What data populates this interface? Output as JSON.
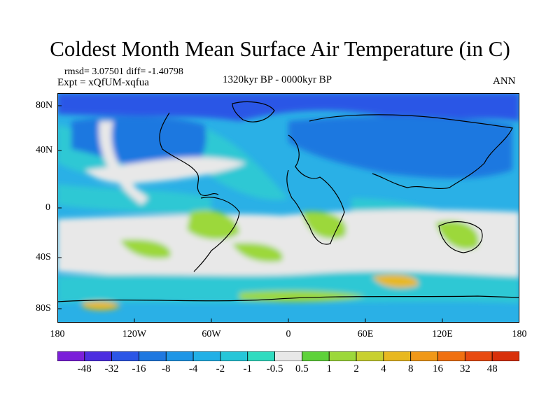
{
  "title": "Coldest Month Mean Surface Air Temperature (in C)",
  "stats": "rmsd= 3.07501  diff= -1.40798",
  "expt": "Expt = xQfUM-xqfua",
  "period": "1320kyr BP - 0000kyr BP",
  "season": "ANN",
  "lat_ticks": [
    "80N",
    "40N",
    "0",
    "40S",
    "80S"
  ],
  "lon_ticks": [
    "180",
    "120W",
    "60W",
    "0",
    "60E",
    "120E",
    "180"
  ],
  "colorbar": {
    "labels": [
      "-48",
      "-32",
      "-16",
      "-8",
      "-4",
      "-2",
      "-1",
      "-0.5",
      "0.5",
      "1",
      "2",
      "4",
      "8",
      "16",
      "32",
      "48"
    ],
    "colors": [
      "#7b1fd9",
      "#4d2ee0",
      "#2c56e6",
      "#1f78e0",
      "#1f96e6",
      "#22b0e6",
      "#26c6d8",
      "#30dcc0",
      "#e8e8e8",
      "#5ed23a",
      "#9cd83a",
      "#c8d030",
      "#e8b820",
      "#f09818",
      "#f07010",
      "#e84a10",
      "#d8300a"
    ]
  },
  "map_colors": {
    "ocean_cool": "#2ab0e6",
    "ocean_teal": "#2ec8d4",
    "land_cold": "#1e78e0",
    "arctic": "#2c56e6",
    "neutral": "#e8e8e8",
    "green": "#9cd83a",
    "warm": "#e8b820",
    "coast": "#000000"
  }
}
